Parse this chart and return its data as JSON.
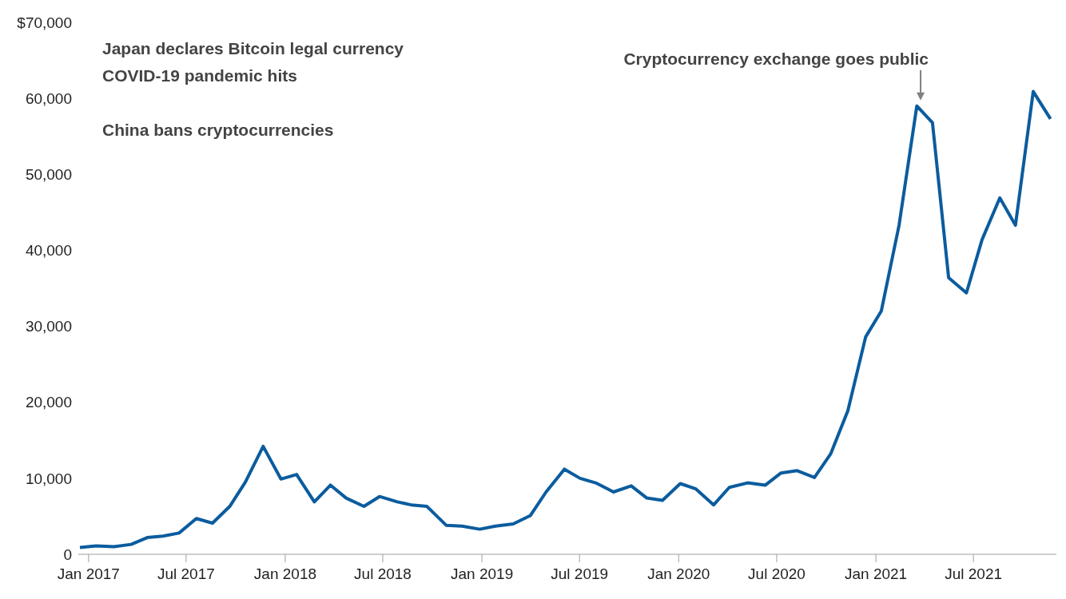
{
  "chart_data": {
    "type": "line",
    "color": "#0b5c9e",
    "marker": "none",
    "line_style": "solid",
    "x": [
      "2016-12-16",
      "2017-01-15",
      "2017-02-17",
      "2017-03-21",
      "2017-04-20",
      "2017-05-19",
      "2017-06-18",
      "2017-07-20",
      "2017-08-19",
      "2017-09-20",
      "2017-10-19",
      "2017-11-21",
      "2017-12-24",
      "2018-01-22",
      "2018-02-24",
      "2018-03-26",
      "2018-04-24",
      "2018-05-27",
      "2018-06-25",
      "2018-07-28",
      "2018-08-23",
      "2018-09-21",
      "2018-10-27",
      "2018-11-25",
      "2018-12-28",
      "2019-01-26",
      "2019-02-28",
      "2019-04-01",
      "2019-04-30",
      "2019-06-03",
      "2019-07-02",
      "2019-07-31",
      "2019-09-02",
      "2019-10-05",
      "2019-11-03",
      "2019-12-02",
      "2020-01-04",
      "2020-02-02",
      "2020-03-06",
      "2020-04-04",
      "2020-05-08",
      "2020-06-10",
      "2020-07-09",
      "2020-08-08",
      "2020-09-09",
      "2020-10-09",
      "2020-11-10",
      "2020-12-13",
      "2021-01-11",
      "2021-02-13",
      "2021-03-18",
      "2021-04-16",
      "2021-05-16",
      "2021-06-18",
      "2021-07-17",
      "2021-08-19",
      "2021-09-17",
      "2021-10-20",
      "2021-11-21"
    ],
    "values": [
      900,
      1100,
      1000,
      1300,
      2200,
      2400,
      2800,
      4700,
      4100,
      6300,
      9500,
      14200,
      9900,
      10500,
      6900,
      9100,
      7400,
      6300,
      7600,
      6900,
      6500,
      6300,
      3800,
      3700,
      3300,
      3700,
      4000,
      5100,
      8200,
      11200,
      10000,
      9400,
      8200,
      9000,
      7400,
      7100,
      9300,
      8600,
      6500,
      8800,
      9400,
      9100,
      10700,
      11000,
      10100,
      13200,
      18900,
      28600,
      32000,
      43300,
      59000,
      56800,
      36400,
      34400,
      41400,
      46900,
      43300,
      60900,
      57300
    ],
    "xlim": [
      "2016-12-13",
      "2021-12-02"
    ],
    "xticks": [
      {
        "value": "2017-01-01",
        "label": "Jan 2017"
      },
      {
        "value": "2017-07-01",
        "label": "Jul 2017"
      },
      {
        "value": "2018-01-01",
        "label": "Jan 2018"
      },
      {
        "value": "2018-07-01",
        "label": "Jul 2018"
      },
      {
        "value": "2019-01-01",
        "label": "Jan 2019"
      },
      {
        "value": "2019-07-01",
        "label": "Jul 2019"
      },
      {
        "value": "2020-01-01",
        "label": "Jan 2020"
      },
      {
        "value": "2020-07-01",
        "label": "Jul 2020"
      },
      {
        "value": "2021-01-01",
        "label": "Jan 2021"
      },
      {
        "value": "2021-07-01",
        "label": "Jul 2021"
      }
    ],
    "ylim": [
      0,
      70000
    ],
    "yticks": [
      0,
      {
        "value": 10000,
        "label": "10,000"
      },
      {
        "value": 20000,
        "label": "20,000"
      },
      {
        "value": 30000,
        "label": "30,000"
      },
      {
        "value": 40000,
        "label": "40,000"
      },
      {
        "value": 50000,
        "label": "50,000"
      },
      {
        "value": 60000,
        "label": "60,000"
      },
      {
        "value": 70000,
        "label": "$70,000"
      }
    ],
    "annotations": [
      "Japan declares Bitcoin legal currency",
      "COVID-19 pandemic hits",
      {
        "text": "Cryptocurrency exchange goes public",
        "x": "2021-03-25",
        "y": 59100
      },
      "China bans cryptocurrencies"
    ]
  }
}
